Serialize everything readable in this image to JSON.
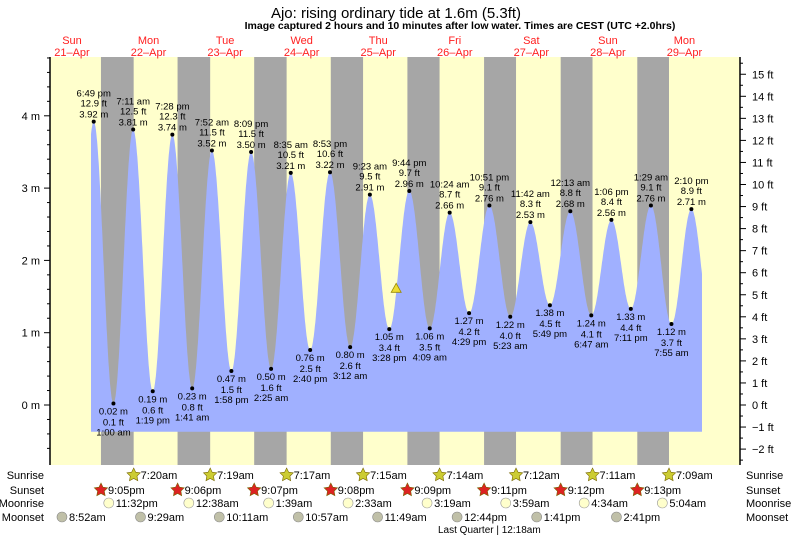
{
  "chart_data": {
    "type": "area",
    "title": "Ajo: rising  ordinary tide at 1.6m (5.3ft)",
    "subtitle": "Image captured 2 hours and 10 minutes after low water. Times are CEST (UTC +2.0hrs)",
    "days": [
      {
        "dow": "Sun",
        "date": "21–Apr"
      },
      {
        "dow": "Mon",
        "date": "22–Apr"
      },
      {
        "dow": "Tue",
        "date": "23–Apr"
      },
      {
        "dow": "Wed",
        "date": "24–Apr"
      },
      {
        "dow": "Thu",
        "date": "25–Apr"
      },
      {
        "dow": "Fri",
        "date": "26–Apr"
      },
      {
        "dow": "Sat",
        "date": "27–Apr"
      },
      {
        "dow": "Sun",
        "date": "28–Apr"
      },
      {
        "dow": "Mon",
        "date": "29–Apr"
      }
    ],
    "y_left": {
      "unit": "m",
      "ylim": [
        -0.6,
        4.8
      ],
      "ticks": [
        "0 m",
        "1 m",
        "2 m",
        "3 m",
        "4 m"
      ],
      "tick_values": [
        0,
        1,
        2,
        3,
        4
      ]
    },
    "y_right": {
      "unit": "ft",
      "ticks": [
        "−2 ft",
        "−1 ft",
        "0 ft",
        "1 ft",
        "2 ft",
        "3 ft",
        "4 ft",
        "5 ft",
        "6 ft",
        "7 ft",
        "8 ft",
        "9 ft",
        "10 ft",
        "11 ft",
        "12 ft",
        "13 ft",
        "14 ft",
        "15 ft"
      ],
      "tick_values": [
        -2,
        -1,
        0,
        1,
        2,
        3,
        4,
        5,
        6,
        7,
        8,
        9,
        10,
        11,
        12,
        13,
        14,
        15
      ]
    },
    "extremes": [
      {
        "day": 0,
        "time": "6:49 pm",
        "type": "high",
        "m": "3.92 m",
        "ft": "12.9 ft",
        "value": 3.92
      },
      {
        "day": 1,
        "time": "1:00 am",
        "type": "low",
        "m": "0.02 m",
        "ft": "0.1 ft",
        "value": 0.02
      },
      {
        "day": 1,
        "time": "7:11 am",
        "type": "high",
        "m": "3.81 m",
        "ft": "12.5 ft",
        "value": 3.81
      },
      {
        "day": 1,
        "time": "1:19 pm",
        "type": "low",
        "m": "0.19 m",
        "ft": "0.6 ft",
        "value": 0.19
      },
      {
        "day": 1,
        "time": "7:28 pm",
        "type": "high",
        "m": "3.74 m",
        "ft": "12.3 ft",
        "value": 3.74
      },
      {
        "day": 2,
        "time": "1:41 am",
        "type": "low",
        "m": "0.23 m",
        "ft": "0.8 ft",
        "value": 0.23
      },
      {
        "day": 2,
        "time": "7:52 am",
        "type": "high",
        "m": "3.52 m",
        "ft": "11.5 ft",
        "value": 3.52
      },
      {
        "day": 2,
        "time": "1:58 pm",
        "type": "low",
        "m": "0.47 m",
        "ft": "1.5 ft",
        "value": 0.47
      },
      {
        "day": 2,
        "time": "8:09 pm",
        "type": "high",
        "m": "3.50 m",
        "ft": "11.5 ft",
        "value": 3.5
      },
      {
        "day": 3,
        "time": "2:25 am",
        "type": "low",
        "m": "0.50 m",
        "ft": "1.6 ft",
        "value": 0.5
      },
      {
        "day": 3,
        "time": "8:35 am",
        "type": "high",
        "m": "3.21 m",
        "ft": "10.5 ft",
        "value": 3.21
      },
      {
        "day": 3,
        "time": "2:40 pm",
        "type": "low",
        "m": "0.76 m",
        "ft": "2.5 ft",
        "value": 0.76
      },
      {
        "day": 3,
        "time": "8:53 pm",
        "type": "high",
        "m": "3.22 m",
        "ft": "10.6 ft",
        "value": 3.22
      },
      {
        "day": 4,
        "time": "3:12 am",
        "type": "low",
        "m": "0.80 m",
        "ft": "2.6 ft",
        "value": 0.8
      },
      {
        "day": 4,
        "time": "9:23 am",
        "type": "high",
        "m": "2.91 m",
        "ft": "9.5 ft",
        "value": 2.91
      },
      {
        "day": 4,
        "time": "3:28 pm",
        "type": "low",
        "m": "1.05 m",
        "ft": "3.4 ft",
        "value": 1.05
      },
      {
        "day": 4,
        "time": "9:44 pm",
        "type": "high",
        "m": "2.96 m",
        "ft": "9.7 ft",
        "value": 2.96
      },
      {
        "day": 5,
        "time": "4:09 am",
        "type": "low",
        "m": "1.06 m",
        "ft": "3.5 ft",
        "value": 1.06
      },
      {
        "day": 5,
        "time": "10:24 am",
        "type": "high",
        "m": "2.66 m",
        "ft": "8.7 ft",
        "value": 2.66
      },
      {
        "day": 5,
        "time": "4:29 pm",
        "type": "low",
        "m": "1.27 m",
        "ft": "4.2 ft",
        "value": 1.27
      },
      {
        "day": 5,
        "time": "10:51 pm",
        "type": "high",
        "m": "2.76 m",
        "ft": "9.1 ft",
        "value": 2.76
      },
      {
        "day": 6,
        "time": "5:23 am",
        "type": "low",
        "m": "1.22 m",
        "ft": "4.0 ft",
        "value": 1.22
      },
      {
        "day": 6,
        "time": "11:42 am",
        "type": "high",
        "m": "2.53 m",
        "ft": "8.3 ft",
        "value": 2.53
      },
      {
        "day": 6,
        "time": "5:49 pm",
        "type": "low",
        "m": "1.38 m",
        "ft": "4.5 ft",
        "value": 1.38
      },
      {
        "day": 7,
        "time": "12:13 am",
        "type": "high",
        "m": "2.68 m",
        "ft": "8.8 ft",
        "value": 2.68
      },
      {
        "day": 7,
        "time": "6:47 am",
        "type": "low",
        "m": "1.24 m",
        "ft": "4.1 ft",
        "value": 1.24
      },
      {
        "day": 7,
        "time": "1:06 pm",
        "type": "high",
        "m": "2.56 m",
        "ft": "8.4 ft",
        "value": 2.56
      },
      {
        "day": 7,
        "time": "7:11 pm",
        "type": "low",
        "m": "1.33 m",
        "ft": "4.4 ft",
        "value": 1.33
      },
      {
        "day": 8,
        "time": "1:29 am",
        "type": "high",
        "m": "2.76 m",
        "ft": "9.1 ft",
        "value": 2.76
      },
      {
        "day": 8,
        "time": "7:55 am",
        "type": "low",
        "m": "1.12 m",
        "ft": "3.7 ft",
        "value": 1.12
      },
      {
        "day": 8,
        "time": "2:10 pm",
        "type": "high",
        "m": "2.71 m",
        "ft": "8.9 ft",
        "value": 2.71
      }
    ],
    "current": {
      "level_m": 1.6,
      "minutes_after_low": 130
    },
    "colors": {
      "water": "#a0b0ff",
      "day": "#ffffcc",
      "night": "#a6a6a6",
      "day_label": "#ff2020",
      "sunrise": "#cccc33",
      "sunset": "#dd2222",
      "moonrise": "#ffffcc",
      "moonset": "#c0c0a8"
    }
  },
  "rows": {
    "sunrise_label": "Sunrise",
    "sunset_label": "Sunset",
    "moonrise_label": "Moonrise",
    "moonset_label": "Moonset",
    "sunrise": [
      {
        "day": 1,
        "time": "7:20am"
      },
      {
        "day": 2,
        "time": "7:19am"
      },
      {
        "day": 3,
        "time": "7:17am"
      },
      {
        "day": 4,
        "time": "7:15am"
      },
      {
        "day": 5,
        "time": "7:14am"
      },
      {
        "day": 6,
        "time": "7:12am"
      },
      {
        "day": 7,
        "time": "7:11am"
      },
      {
        "day": 8,
        "time": "7:09am"
      }
    ],
    "sunset": [
      {
        "day": 0,
        "time": "9:05pm"
      },
      {
        "day": 1,
        "time": "9:06pm"
      },
      {
        "day": 2,
        "time": "9:07pm"
      },
      {
        "day": 3,
        "time": "9:08pm"
      },
      {
        "day": 4,
        "time": "9:09pm"
      },
      {
        "day": 5,
        "time": "9:11pm"
      },
      {
        "day": 6,
        "time": "9:12pm"
      },
      {
        "day": 7,
        "time": "9:13pm"
      }
    ],
    "moonrise": [
      {
        "day": 0,
        "time": "11:32pm"
      },
      {
        "day": 2,
        "time": "12:38am"
      },
      {
        "day": 3,
        "time": "1:39am"
      },
      {
        "day": 4,
        "time": "2:33am"
      },
      {
        "day": 5,
        "time": "3:19am"
      },
      {
        "day": 6,
        "time": "3:59am"
      },
      {
        "day": 7,
        "time": "4:34am"
      },
      {
        "day": 8,
        "time": "5:04am"
      }
    ],
    "moonset": [
      {
        "day": 0,
        "time": "8:52am"
      },
      {
        "day": 1,
        "time": "9:29am"
      },
      {
        "day": 2,
        "time": "10:11am"
      },
      {
        "day": 3,
        "time": "10:57am"
      },
      {
        "day": 4,
        "time": "11:49am"
      },
      {
        "day": 5,
        "time": "12:44pm"
      },
      {
        "day": 6,
        "time": "1:41pm"
      },
      {
        "day": 7,
        "time": "2:41pm"
      }
    ],
    "moon_phase": {
      "day": 5,
      "time": "12:18am",
      "label": "Last Quarter | 12:18am"
    }
  }
}
